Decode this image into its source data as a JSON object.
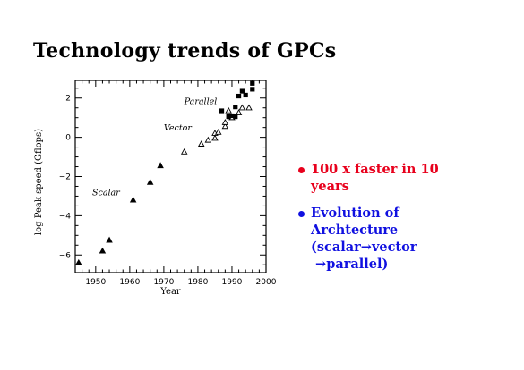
{
  "slide": {
    "title": "Technology trends of GPCs"
  },
  "bullets": [
    {
      "lines": [
        "100 x faster in 10",
        "years"
      ],
      "color": "#e8001c"
    },
    {
      "lines": [
        "Evolution of",
        "Archtecture",
        "(scalar→vector",
        " →parallel)"
      ],
      "color": "#1010e0"
    }
  ],
  "chart_data": {
    "type": "scatter",
    "title": "",
    "xlabel": "Year",
    "ylabel": "log Peak speed (Gflops)",
    "xlim": [
      1944,
      2000
    ],
    "ylim": [
      -6.9,
      2.9
    ],
    "x_ticks": [
      1950,
      1960,
      1970,
      1980,
      1990,
      2000
    ],
    "y_ticks": [
      2,
      0,
      -2,
      -4,
      -6
    ],
    "grid": false,
    "series": [
      {
        "name": "Scalar",
        "marker": "filled-triangle",
        "points": [
          [
            1945,
            -6.4
          ],
          [
            1952,
            -5.8
          ],
          [
            1954,
            -5.25
          ],
          [
            1961,
            -3.2
          ],
          [
            1966,
            -2.3
          ],
          [
            1969,
            -1.45
          ]
        ]
      },
      {
        "name": "Vector",
        "marker": "open-triangle",
        "points": [
          [
            1976,
            -0.75
          ],
          [
            1981,
            -0.35
          ],
          [
            1983,
            -0.15
          ],
          [
            1985,
            0.2
          ],
          [
            1986,
            0.25
          ],
          [
            1985,
            -0.05
          ],
          [
            1988,
            0.55
          ],
          [
            1988,
            0.75
          ],
          [
            1989,
            1.35
          ],
          [
            1990,
            1.0
          ],
          [
            1992,
            1.25
          ],
          [
            1993,
            1.5
          ],
          [
            1995,
            1.5
          ]
        ]
      },
      {
        "name": "Parallel",
        "marker": "filled-square",
        "points": [
          [
            1987,
            1.35
          ],
          [
            1989,
            1.05
          ],
          [
            1990,
            1.1
          ],
          [
            1991,
            1.05
          ],
          [
            1991,
            1.55
          ],
          [
            1992,
            2.1
          ],
          [
            1993,
            2.35
          ],
          [
            1994,
            2.15
          ],
          [
            1996,
            2.75
          ],
          [
            1996,
            2.45
          ]
        ]
      }
    ],
    "annotations": [
      {
        "text": "Scalar",
        "x": 1949,
        "y": -2.95
      },
      {
        "text": "Vector",
        "x": 1970,
        "y": 0.35
      },
      {
        "text": "Parallel",
        "x": 1976,
        "y": 1.7
      }
    ]
  }
}
